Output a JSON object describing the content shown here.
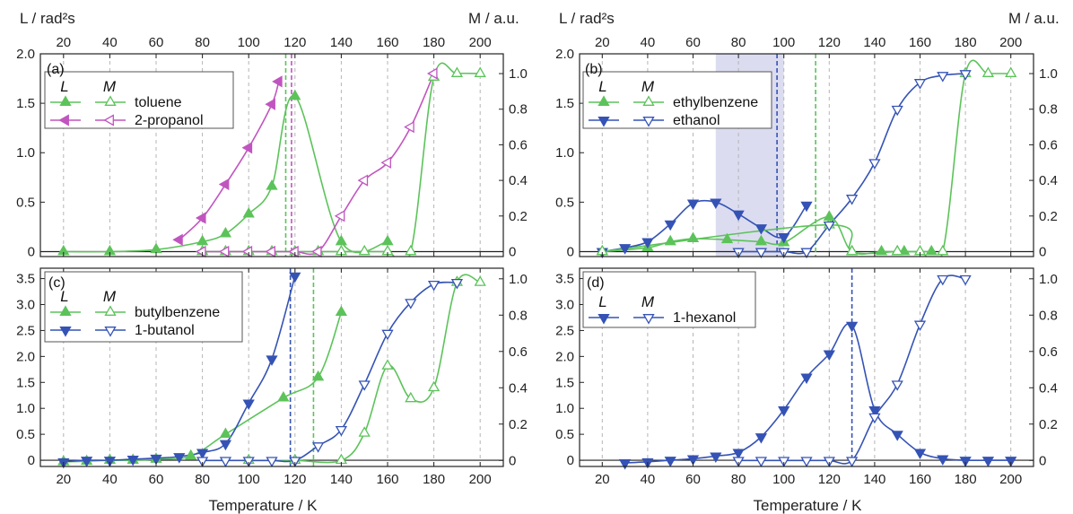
{
  "figure": {
    "top_left_label": "L / rad²s",
    "top_right_label": "M / a.u.",
    "xlabel": "Temperature / K",
    "colors": {
      "green": "#5cc35a",
      "blue": "#3553b5",
      "magenta": "#c155c0",
      "shade": "#dcdcf0"
    }
  },
  "chart_data": [
    {
      "id": "a",
      "type": "line",
      "label": "(a)",
      "xlim": [
        10,
        210
      ],
      "ylim_left": [
        -0.05,
        2.0
      ],
      "ylim_right": [
        -0.0278,
        1.1111
      ],
      "xticks": [
        20,
        40,
        60,
        80,
        100,
        120,
        140,
        160,
        180,
        200
      ],
      "yticks_left": [
        0,
        0.5,
        1.0,
        1.5,
        2.0
      ],
      "yticks_left_labels": [
        "0",
        "0.5",
        "1.0",
        "1.5",
        "2.0"
      ],
      "yticks_right": [
        0,
        0.2,
        0.4,
        0.6,
        0.8,
        1.0
      ],
      "yticks_right_labels": [
        "0",
        "0.2",
        "0.4",
        "0.6",
        "0.8",
        "1.0"
      ],
      "top_xticks": true,
      "bottom_xticks": false,
      "legend_headers": {
        "L": "L",
        "M": "M"
      },
      "legend": [
        "toluene",
        "2-propanol"
      ],
      "vlines": [
        {
          "x": 116,
          "color": "green"
        },
        {
          "x": 118.5,
          "color": "magenta"
        }
      ],
      "series": [
        {
          "name": "toluene",
          "quantity": "L",
          "axis": "left",
          "marker": "up",
          "filled": true,
          "color": "green",
          "x": [
            20,
            40,
            60,
            80,
            90,
            100,
            110,
            120,
            140,
            160
          ],
          "y": [
            0.0,
            0.0,
            0.02,
            0.1,
            0.18,
            0.38,
            0.66,
            1.57,
            0.1,
            0.1
          ]
        },
        {
          "name": "2-propanol",
          "quantity": "L",
          "axis": "left",
          "marker": "left",
          "filled": true,
          "color": "magenta",
          "x": [
            70,
            80,
            90,
            100,
            110,
            113
          ],
          "y": [
            0.12,
            0.34,
            0.68,
            1.05,
            1.49,
            1.72
          ]
        },
        {
          "name": "toluene",
          "quantity": "M",
          "axis": "right",
          "marker": "up",
          "filled": false,
          "color": "green",
          "x": [
            80,
            90,
            100,
            110,
            120,
            130,
            140,
            150,
            160,
            170,
            180,
            190,
            200
          ],
          "y": [
            0,
            0,
            0,
            0,
            0,
            0,
            0,
            0,
            0,
            0,
            0.98,
            1.0,
            1.0
          ]
        },
        {
          "name": "2-propanol",
          "quantity": "M",
          "axis": "right",
          "marker": "left",
          "filled": false,
          "color": "magenta",
          "x": [
            80,
            90,
            100,
            110,
            120,
            130,
            140,
            150,
            160,
            170,
            180
          ],
          "y": [
            0,
            0,
            0,
            0,
            0,
            0,
            0.2,
            0.4,
            0.5,
            0.7,
            1.0
          ]
        }
      ]
    },
    {
      "id": "b",
      "type": "line",
      "label": "(b)",
      "xlim": [
        10,
        210
      ],
      "ylim_left": [
        -0.05,
        2.0
      ],
      "ylim_right": [
        -0.0278,
        1.1111
      ],
      "xticks": [
        20,
        40,
        60,
        80,
        100,
        120,
        140,
        160,
        180,
        200
      ],
      "yticks_left": [
        0,
        0.5,
        1.0,
        1.5,
        2.0
      ],
      "yticks_left_labels": [
        "0",
        "0.5",
        "1.0",
        "1.5",
        "2.0"
      ],
      "yticks_right": [
        0,
        0.2,
        0.4,
        0.6,
        0.8,
        1.0
      ],
      "yticks_right_labels": [
        "0",
        "0.2",
        "0.4",
        "0.6",
        "0.8",
        "1.0"
      ],
      "top_xticks": true,
      "bottom_xticks": false,
      "legend_headers": {
        "L": "L",
        "M": "M"
      },
      "legend": [
        "ethylbenzene",
        "ethanol"
      ],
      "shade": [
        70,
        100
      ],
      "vlines": [
        {
          "x": 97,
          "color": "blue"
        },
        {
          "x": 114,
          "color": "green"
        }
      ],
      "series": [
        {
          "name": "ethylbenzene",
          "quantity": "L",
          "axis": "left",
          "marker": "up",
          "filled": true,
          "color": "green",
          "x": [
            20,
            40,
            50,
            60,
            75,
            90,
            100,
            120,
            130,
            143,
            150,
            153,
            165
          ],
          "y": [
            0.0,
            0.04,
            0.1,
            0.13,
            0.12,
            0.1,
            0.09,
            0.35,
            0.0,
            0.0,
            0.0,
            0.0,
            0.0
          ]
        },
        {
          "name": "ethanol",
          "quantity": "L",
          "axis": "left",
          "marker": "down",
          "filled": true,
          "color": "blue",
          "x": [
            20,
            30,
            40,
            50,
            60,
            70,
            80,
            90,
            100,
            110
          ],
          "y": [
            0.0,
            0.04,
            0.1,
            0.28,
            0.49,
            0.5,
            0.38,
            0.24,
            0.15,
            0.47
          ]
        },
        {
          "name": "ethylbenzene",
          "quantity": "M",
          "axis": "right",
          "marker": "up",
          "filled": false,
          "color": "green",
          "x": [
            20,
            120,
            130,
            150,
            160,
            170,
            180,
            190,
            200
          ],
          "y": [
            0,
            0.15,
            0,
            0,
            0,
            0,
            1.0,
            1.0,
            1.0
          ]
        },
        {
          "name": "ethanol",
          "quantity": "M",
          "axis": "right",
          "marker": "down",
          "filled": false,
          "color": "blue",
          "x": [
            80,
            90,
            100,
            110,
            120,
            130,
            140,
            150,
            160,
            170,
            180
          ],
          "y": [
            0,
            0,
            0,
            0,
            0.15,
            0.3,
            0.5,
            0.8,
            0.95,
            0.99,
            1.0
          ]
        }
      ]
    },
    {
      "id": "c",
      "type": "line",
      "label": "(c)",
      "xlim": [
        10,
        210
      ],
      "ylim_left": [
        -0.12,
        3.7
      ],
      "ylim_right": [
        -0.0333,
        1.0583
      ],
      "xticks": [
        20,
        40,
        60,
        80,
        100,
        120,
        140,
        160,
        180,
        200
      ],
      "yticks_left": [
        0,
        0.5,
        1.0,
        1.5,
        2.0,
        2.5,
        3.0,
        3.5
      ],
      "yticks_left_labels": [
        "0",
        "0.5",
        "1.0",
        "1.5",
        "2.0",
        "2.5",
        "3.0",
        "3.5"
      ],
      "yticks_right": [
        0,
        0.2,
        0.4,
        0.6,
        0.8,
        1.0
      ],
      "yticks_right_labels": [
        "0",
        "0.2",
        "0.4",
        "0.6",
        "0.8",
        "1.0"
      ],
      "top_xticks": false,
      "bottom_xticks": true,
      "legend_headers": {
        "L": "L",
        "M": "M"
      },
      "legend": [
        "butylbenzene",
        "1-butanol"
      ],
      "vlines": [
        {
          "x": 118,
          "color": "blue"
        },
        {
          "x": 128,
          "color": "green"
        }
      ],
      "series": [
        {
          "name": "butylbenzene",
          "quantity": "L",
          "axis": "left",
          "marker": "up",
          "filled": true,
          "color": "green",
          "x": [
            20,
            30,
            40,
            50,
            60,
            75,
            90,
            115,
            130,
            140
          ],
          "y": [
            -0.03,
            -0.02,
            0.0,
            0.0,
            0.02,
            0.08,
            0.5,
            1.2,
            1.6,
            2.85
          ]
        },
        {
          "name": "1-butanol",
          "quantity": "L",
          "axis": "left",
          "marker": "down",
          "filled": true,
          "color": "blue",
          "x": [
            20,
            30,
            40,
            50,
            60,
            70,
            80,
            90,
            100,
            110,
            120
          ],
          "y": [
            -0.03,
            0.0,
            0.0,
            0.02,
            0.04,
            0.07,
            0.15,
            0.32,
            1.1,
            1.95,
            3.55
          ]
        },
        {
          "name": "butylbenzene",
          "quantity": "M",
          "axis": "right",
          "marker": "up",
          "filled": false,
          "color": "green",
          "x": [
            100,
            120,
            140,
            150,
            160,
            170,
            180,
            190,
            200
          ],
          "y": [
            0,
            0,
            0,
            0.15,
            0.52,
            0.34,
            0.4,
            0.98,
            0.98
          ]
        },
        {
          "name": "1-butanol",
          "quantity": "M",
          "axis": "right",
          "marker": "down",
          "filled": false,
          "color": "blue",
          "x": [
            80,
            90,
            100,
            110,
            120,
            130,
            140,
            150,
            160,
            170,
            180,
            190
          ],
          "y": [
            0,
            0,
            0,
            0,
            0,
            0.08,
            0.17,
            0.42,
            0.7,
            0.87,
            0.97,
            0.98
          ]
        }
      ]
    },
    {
      "id": "d",
      "type": "line",
      "label": "(d)",
      "xlim": [
        10,
        210
      ],
      "ylim_left": [
        -0.12,
        3.7
      ],
      "ylim_right": [
        -0.0333,
        1.0583
      ],
      "xticks": [
        20,
        40,
        60,
        80,
        100,
        120,
        140,
        160,
        180,
        200
      ],
      "yticks_left": [
        0,
        0.5,
        1.0,
        1.5,
        2.0,
        2.5,
        3.0,
        3.5
      ],
      "yticks_left_labels": [
        "0",
        "0.5",
        "1.0",
        "1.5",
        "2.0",
        "2.5",
        "3.0",
        "3.5"
      ],
      "yticks_right": [
        0,
        0.2,
        0.4,
        0.6,
        0.8,
        1.0
      ],
      "yticks_right_labels": [
        "0",
        "0.2",
        "0.4",
        "0.6",
        "0.8",
        "1.0"
      ],
      "top_xticks": false,
      "bottom_xticks": true,
      "legend_headers": {
        "L": "L",
        "M": "M"
      },
      "legend": [
        "1-hexanol"
      ],
      "vlines": [
        {
          "x": 130,
          "color": "blue"
        }
      ],
      "series": [
        {
          "name": "1-hexanol",
          "quantity": "L",
          "axis": "left",
          "marker": "down",
          "filled": true,
          "color": "blue",
          "x": [
            30,
            40,
            50,
            60,
            70,
            80,
            90,
            100,
            110,
            120,
            130,
            140,
            150,
            160,
            170,
            180,
            190,
            200
          ],
          "y": [
            -0.05,
            -0.03,
            0.0,
            0.03,
            0.08,
            0.15,
            0.45,
            0.97,
            1.6,
            2.05,
            2.6,
            0.97,
            0.5,
            0.15,
            0.03,
            0.0,
            0.0,
            0.0
          ]
        },
        {
          "name": "1-hexanol",
          "quantity": "M",
          "axis": "right",
          "marker": "down",
          "filled": false,
          "color": "blue",
          "x": [
            80,
            90,
            100,
            110,
            120,
            130,
            140,
            150,
            160,
            170,
            180
          ],
          "y": [
            0,
            0,
            0,
            0,
            0,
            0,
            0.24,
            0.42,
            0.75,
            1.0,
            1.0
          ]
        }
      ]
    }
  ]
}
